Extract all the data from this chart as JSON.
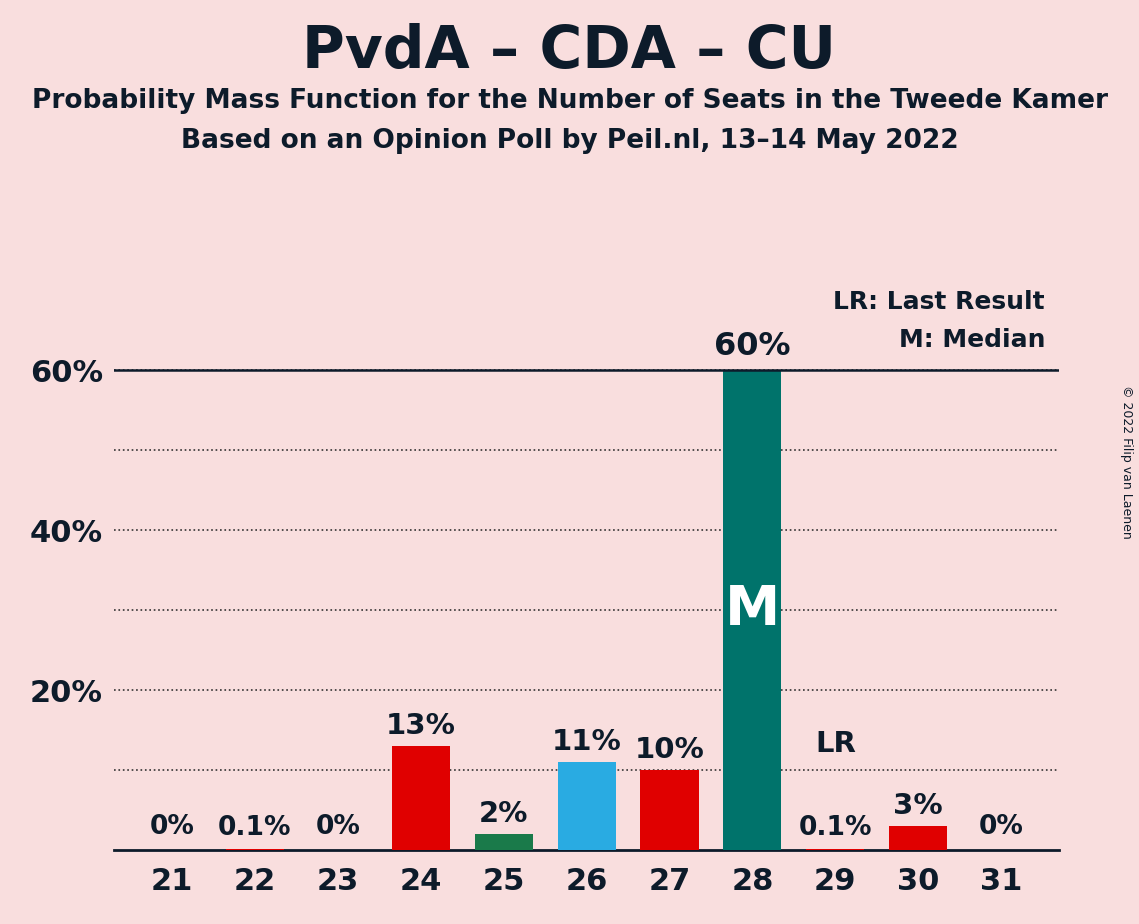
{
  "title": "PvdA – CDA – CU",
  "subtitle1": "Probability Mass Function for the Number of Seats in the Tweede Kamer",
  "subtitle2": "Based on an Opinion Poll by Peil.nl, 13–14 May 2022",
  "copyright": "© 2022 Filip van Laenen",
  "seats": [
    21,
    22,
    23,
    24,
    25,
    26,
    27,
    28,
    29,
    30,
    31
  ],
  "values": [
    0.0,
    0.1,
    0.0,
    13.0,
    2.0,
    11.0,
    10.0,
    60.0,
    0.1,
    3.0,
    0.0
  ],
  "labels": [
    "0%",
    "0.1%",
    "0%",
    "13%",
    "2%",
    "11%",
    "10%",
    "60%",
    "0.1%",
    "3%",
    "0%"
  ],
  "bar_colors": [
    "#e00000",
    "#e00000",
    "#e00000",
    "#e00000",
    "#1a7a4a",
    "#29abe2",
    "#e00000",
    "#00736b",
    "#e00000",
    "#e00000",
    "#e00000"
  ],
  "median_seat": 28,
  "lr_seat": 29,
  "background_color": "#f9dede",
  "title_color": "#0d1b2a",
  "ylim": [
    0,
    67
  ],
  "grid_yticks": [
    10,
    20,
    30,
    40,
    50,
    60
  ],
  "label_yticks": [
    20,
    40,
    60
  ],
  "legend_lr": "LR: Last Result",
  "legend_m": "M: Median",
  "median_line_y": 60.0
}
